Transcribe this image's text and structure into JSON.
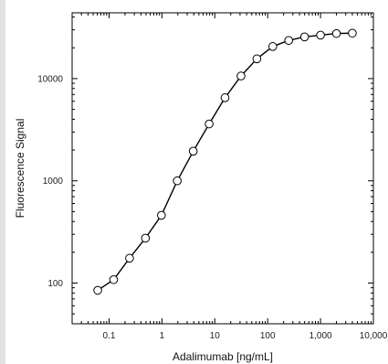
{
  "chart_data": {
    "type": "line",
    "title": "",
    "xlabel": "Adalimumab [ng/mL]",
    "ylabel": "Fluorescence Signal",
    "x_scale": "log",
    "y_scale": "log",
    "xlim": [
      0.02,
      10000
    ],
    "ylim": [
      40,
      44000
    ],
    "x_ticks": [
      0.1,
      1,
      10,
      100,
      1000,
      10000
    ],
    "x_tick_labels": [
      "0.1",
      "1",
      "10",
      "100",
      "1,000",
      "10,000"
    ],
    "y_ticks": [
      100,
      1000,
      10000
    ],
    "y_tick_labels": [
      "100",
      "1000",
      "10000"
    ],
    "grid": false,
    "legend": "none",
    "marker": "open-circle",
    "line_color": "#000000",
    "series": [
      {
        "x": [
          0.061,
          0.122,
          0.244,
          0.488,
          0.977,
          1.95,
          3.91,
          7.81,
          15.6,
          31.3,
          62.5,
          125,
          250,
          500,
          1000,
          2000,
          4000
        ],
        "y": [
          85,
          108,
          175,
          275,
          460,
          1000,
          1950,
          3600,
          6500,
          10600,
          15600,
          20600,
          23600,
          25600,
          26600,
          27600,
          27800
        ]
      }
    ]
  }
}
